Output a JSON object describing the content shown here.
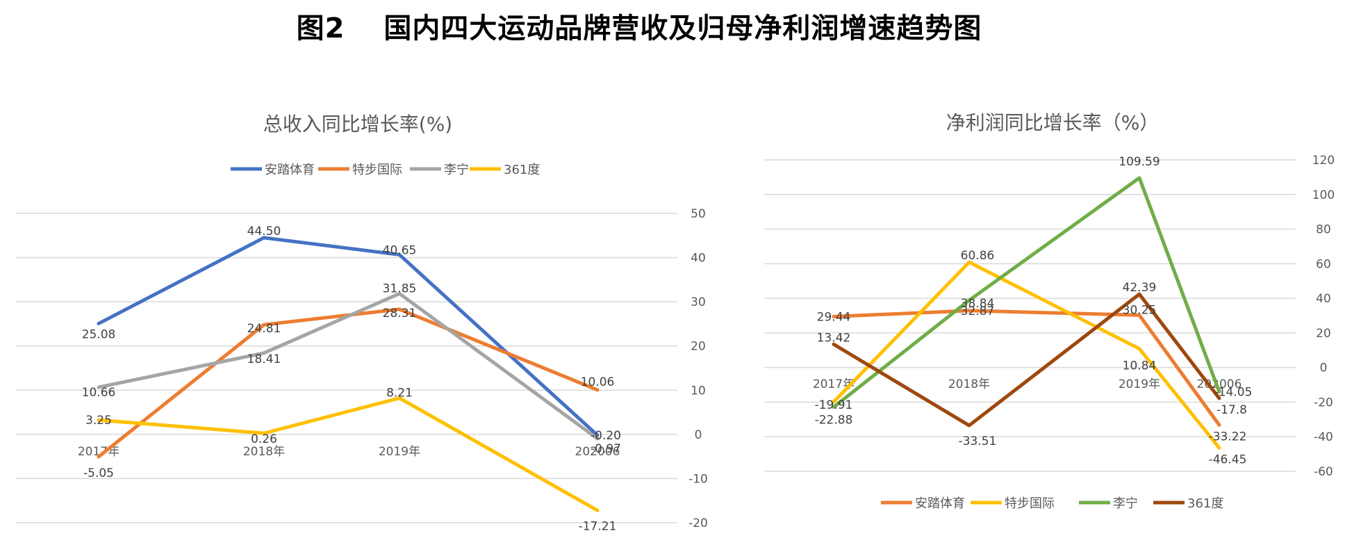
{
  "figure_title": "图2　 国内四大运动品牌营收及归母净利润增速趋势图",
  "chart_data": [
    {
      "type": "line",
      "title": "总收入同比增长率(%)",
      "categories": [
        "2017年",
        "2018年",
        "2019年",
        "202006"
      ],
      "series": [
        {
          "name": "安踏体育",
          "color": "#4472C4",
          "values": [
            25.08,
            44.5,
            40.65,
            -0.2
          ]
        },
        {
          "name": "特步国际",
          "color": "#ED7D31",
          "values": [
            -5.05,
            24.81,
            28.31,
            10.06
          ]
        },
        {
          "name": "李宁",
          "color": "#A5A5A5",
          "values": [
            10.66,
            18.41,
            31.85,
            -0.97
          ]
        },
        {
          "name": "361度",
          "color": "#FFC000",
          "values": [
            3.25,
            0.26,
            8.21,
            -17.21
          ]
        }
      ],
      "ylim": [
        -20,
        50
      ],
      "yticks": [
        50,
        40,
        30,
        20,
        10,
        0,
        -10,
        -20
      ],
      "y_axis_side": "right",
      "legend": "top",
      "labels": [
        [
          "25.08",
          "44.50",
          "40.65",
          "-0.20"
        ],
        [
          "-5.05",
          "24.81",
          "28.31",
          "10.06"
        ],
        [
          "10.66",
          "18.41",
          "31.85",
          "-0.97"
        ],
        [
          "3.25",
          "0.26",
          "8.21",
          "-17.21"
        ]
      ]
    },
    {
      "type": "line",
      "title": "净利润同比增长率（%）",
      "categories": [
        "2017年",
        "2018年",
        "2019年",
        "202006"
      ],
      "series": [
        {
          "name": "安踏体育",
          "color": "#ED7D31",
          "values": [
            29.44,
            32.87,
            30.25,
            -33.22
          ]
        },
        {
          "name": "特步国际",
          "color": "#FFC000",
          "values": [
            -19.91,
            60.86,
            10.84,
            -46.45
          ]
        },
        {
          "name": "李宁",
          "color": "#70AD47",
          "values": [
            -22.88,
            38.84,
            109.59,
            -14.05
          ]
        },
        {
          "name": "361度",
          "color": "#9E480E",
          "values": [
            13.42,
            -33.51,
            42.39,
            -17.8
          ]
        }
      ],
      "ylim": [
        -60,
        120
      ],
      "yticks": [
        120,
        100,
        80,
        60,
        40,
        20,
        0,
        -20,
        -40,
        -60
      ],
      "y_axis_side": "right",
      "legend": "bottom",
      "labels": [
        [
          "29.44",
          "32.87",
          "30.25",
          "-33.22"
        ],
        [
          "-19.91",
          "60.86",
          "10.84",
          "-46.45"
        ],
        [
          "-22.88",
          "38.84",
          "109.59",
          "-14.05"
        ],
        [
          "13.42",
          "-33.51",
          "42.39",
          "-17.8"
        ]
      ]
    }
  ]
}
